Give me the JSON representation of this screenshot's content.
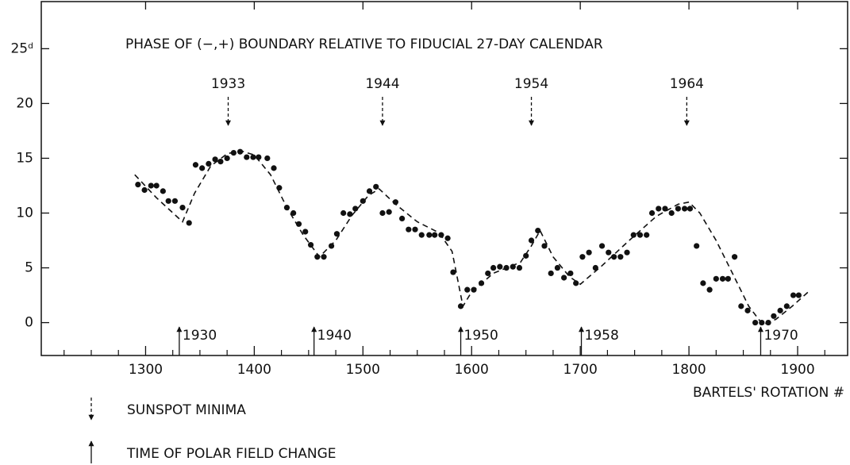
{
  "chart_data": {
    "type": "scatter",
    "title": "PHASE OF (−,+) BOUNDARY RELATIVE TO FIDUCIAL 27-DAY CALENDAR",
    "x_label": "BARTELS' ROTATION #",
    "xlim": [
      1204,
      1946
    ],
    "ylim": [
      -3,
      29.3
    ],
    "xticks": [
      1300,
      1400,
      1500,
      1600,
      1700,
      1800,
      1900
    ],
    "xminor_ticks": [
      1225,
      1250,
      1275,
      1325,
      1350,
      1375,
      1425,
      1450,
      1475,
      1525,
      1550,
      1575,
      1625,
      1650,
      1675,
      1725,
      1750,
      1775,
      1825,
      1850,
      1875,
      1925
    ],
    "yticks": [
      0,
      5,
      10,
      15,
      20,
      {
        "value": 25,
        "label": "25ᵈ"
      }
    ],
    "color": "#111111",
    "points": {
      "x": [
        1293,
        1299,
        1305,
        1310,
        1316,
        1321,
        1327,
        1334,
        1340,
        1346,
        1352,
        1358,
        1364,
        1369,
        1375,
        1381,
        1387,
        1393,
        1399,
        1404,
        1412,
        1418,
        1423,
        1430,
        1436,
        1441,
        1447,
        1452,
        1458,
        1464,
        1471,
        1476,
        1482,
        1488,
        1493,
        1500,
        1506,
        1512,
        1518,
        1524,
        1530,
        1536,
        1542,
        1548,
        1554,
        1561,
        1566,
        1572,
        1578,
        1583,
        1590,
        1596,
        1602,
        1609,
        1615,
        1620,
        1626,
        1632,
        1638,
        1644,
        1650,
        1655,
        1661,
        1667,
        1673,
        1679,
        1685,
        1691,
        1696,
        1702,
        1708,
        1714,
        1720,
        1726,
        1731,
        1737,
        1743,
        1749,
        1755,
        1761,
        1766,
        1772,
        1778,
        1784,
        1790,
        1796,
        1801,
        1807,
        1813,
        1819,
        1825,
        1831,
        1836,
        1842,
        1848,
        1854,
        1861,
        1867,
        1873,
        1878,
        1884,
        1890,
        1896,
        1901
      ],
      "y": [
        12.6,
        12.1,
        12.5,
        12.5,
        12.0,
        11.1,
        11.1,
        10.5,
        9.1,
        14.4,
        14.1,
        14.5,
        14.9,
        14.7,
        15.0,
        15.5,
        15.6,
        15.1,
        15.1,
        15.1,
        15.0,
        14.1,
        12.3,
        10.5,
        10.0,
        9.0,
        8.3,
        7.1,
        6.0,
        6.0,
        7.0,
        8.1,
        10.0,
        9.9,
        10.4,
        11.1,
        12.0,
        12.4,
        10.0,
        10.1,
        11.0,
        9.5,
        8.5,
        8.5,
        8.0,
        8.0,
        8.0,
        8.0,
        7.7,
        4.6,
        1.5,
        3.0,
        3.0,
        3.6,
        4.5,
        5.0,
        5.1,
        5.0,
        5.1,
        5.0,
        6.1,
        7.5,
        8.4,
        7.0,
        4.5,
        5.0,
        4.1,
        4.5,
        3.6,
        6.0,
        6.4,
        5.0,
        7.0,
        6.4,
        6.0,
        6.0,
        6.4,
        8.0,
        8.0,
        8.0,
        10.0,
        10.4,
        10.4,
        10.0,
        10.4,
        10.4,
        10.4,
        7.0,
        3.6,
        3.0,
        4.0,
        4.0,
        4.0,
        6.0,
        1.5,
        1.1,
        0,
        0,
        0,
        0.6,
        1.1,
        1.5,
        2.5,
        2.5
      ]
    },
    "fit": {
      "style": "dashed",
      "x": [
        1290,
        1310,
        1334,
        1345,
        1360,
        1375,
        1387,
        1400,
        1415,
        1430,
        1445,
        1460,
        1475,
        1490,
        1505,
        1515,
        1530,
        1550,
        1570,
        1582,
        1592,
        1600,
        1620,
        1645,
        1655,
        1663,
        1675,
        1690,
        1700,
        1720,
        1745,
        1770,
        1790,
        1800,
        1810,
        1825,
        1840,
        1855,
        1868,
        1880,
        1895,
        1912
      ],
      "y": [
        13.5,
        11.4,
        9.2,
        11.8,
        14.3,
        15.4,
        15.7,
        15.3,
        13.5,
        10.5,
        8,
        6,
        7.5,
        9.8,
        11.6,
        12.2,
        10.8,
        9.2,
        8.2,
        6.5,
        1.5,
        2.8,
        4.5,
        5.5,
        7,
        8.4,
        6,
        4.2,
        3.5,
        5.2,
        7.5,
        9.7,
        10.8,
        11,
        10,
        7.5,
        4.5,
        1.5,
        -0.2,
        0.3,
        1.5,
        3
      ]
    },
    "sunspot_minima": [
      {
        "label": "1933",
        "x": 1376
      },
      {
        "label": "1944",
        "x": 1518
      },
      {
        "label": "1954",
        "x": 1655
      },
      {
        "label": "1964",
        "x": 1798
      }
    ],
    "polar_field_changes": [
      {
        "label": "1930",
        "x": 1331
      },
      {
        "label": "1940",
        "x": 1455
      },
      {
        "label": "1950",
        "x": 1590
      },
      {
        "label": "1958",
        "x": 1701
      },
      {
        "label": "1970",
        "x": 1866
      }
    ],
    "legend": [
      {
        "label": "SUNSPOT MINIMA",
        "style": "dashed"
      },
      {
        "label": "TIME OF POLAR FIELD CHANGE",
        "style": "solid"
      }
    ]
  }
}
